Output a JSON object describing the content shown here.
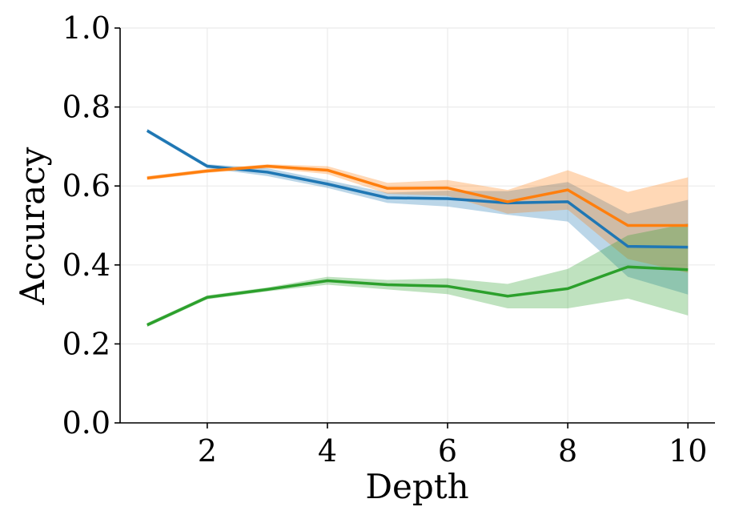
{
  "chart_data": {
    "type": "line",
    "title": "",
    "xlabel": "Depth",
    "ylabel": "Accuracy",
    "xlim": [
      0.55,
      10.45
    ],
    "ylim": [
      0.0,
      1.0
    ],
    "xticks": [
      2,
      4,
      6,
      8,
      10
    ],
    "xtick_labels": [
      "2",
      "4",
      "6",
      "8",
      "10"
    ],
    "yticks": [
      0.0,
      0.2,
      0.4,
      0.6,
      0.8,
      1.0
    ],
    "ytick_labels": [
      "0.0",
      "0.2",
      "0.4",
      "0.6",
      "0.8",
      "1.0"
    ],
    "grid": true,
    "x": [
      1,
      2,
      3,
      4,
      5,
      6,
      7,
      8,
      9,
      10
    ],
    "series": [
      {
        "name": "series-blue",
        "color": "#1f77b4",
        "values": [
          0.74,
          0.65,
          0.635,
          0.605,
          0.57,
          0.568,
          0.557,
          0.56,
          0.447,
          0.445
        ],
        "lower": [
          0.735,
          0.645,
          0.625,
          0.595,
          0.557,
          0.548,
          0.527,
          0.51,
          0.37,
          0.325
        ],
        "upper": [
          0.745,
          0.655,
          0.645,
          0.615,
          0.583,
          0.588,
          0.587,
          0.61,
          0.53,
          0.565
        ]
      },
      {
        "name": "series-orange",
        "color": "#ff7f0e",
        "values": [
          0.62,
          0.638,
          0.65,
          0.64,
          0.594,
          0.595,
          0.56,
          0.59,
          0.5,
          0.5
        ],
        "lower": [
          0.615,
          0.633,
          0.645,
          0.63,
          0.58,
          0.575,
          0.53,
          0.54,
          0.415,
          0.38
        ],
        "upper": [
          0.625,
          0.643,
          0.655,
          0.65,
          0.608,
          0.615,
          0.59,
          0.64,
          0.585,
          0.622
        ]
      },
      {
        "name": "series-green",
        "color": "#2ca02c",
        "values": [
          0.248,
          0.318,
          0.338,
          0.36,
          0.35,
          0.346,
          0.321,
          0.34,
          0.395,
          0.388
        ],
        "lower": [
          0.243,
          0.313,
          0.333,
          0.35,
          0.338,
          0.326,
          0.29,
          0.29,
          0.315,
          0.272
        ],
        "upper": [
          0.253,
          0.323,
          0.343,
          0.37,
          0.362,
          0.366,
          0.352,
          0.39,
          0.475,
          0.505
        ]
      }
    ]
  }
}
